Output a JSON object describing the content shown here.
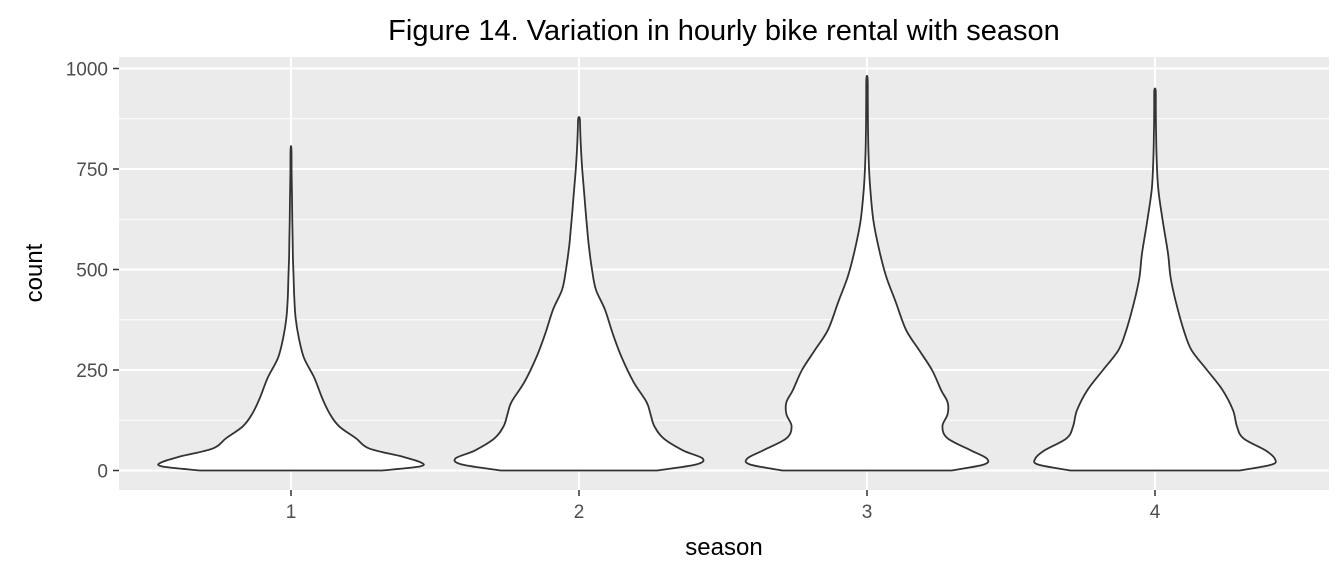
{
  "chart_data": {
    "type": "violin",
    "title": "Figure 14. Variation in hourly bike rental with season",
    "xlabel": "season",
    "ylabel": "count",
    "categories": [
      "1",
      "2",
      "3",
      "4"
    ],
    "yticks": [
      "0",
      "250",
      "500",
      "750",
      "1000"
    ],
    "ylim": [
      -50,
      1050
    ],
    "grid": true,
    "background": "#ebebeb",
    "gridcolor": "#ffffff",
    "outline": "#333333",
    "fill": "#ffffff",
    "violins": [
      {
        "category": "1",
        "profile": [
          [
            0,
            0.7
          ],
          [
            10,
            0.99
          ],
          [
            20,
            1.0
          ],
          [
            35,
            0.85
          ],
          [
            55,
            0.6
          ],
          [
            80,
            0.5
          ],
          [
            110,
            0.37
          ],
          [
            140,
            0.3
          ],
          [
            180,
            0.24
          ],
          [
            230,
            0.18
          ],
          [
            280,
            0.1
          ],
          [
            330,
            0.06
          ],
          [
            380,
            0.035
          ],
          [
            430,
            0.025
          ],
          [
            480,
            0.02
          ],
          [
            530,
            0.015
          ],
          [
            580,
            0.012
          ],
          [
            620,
            0.01
          ],
          [
            680,
            0.008
          ],
          [
            740,
            0.005
          ],
          [
            800,
            0.003
          ]
        ]
      },
      {
        "category": "2",
        "profile": [
          [
            0,
            0.6
          ],
          [
            15,
            0.9
          ],
          [
            30,
            0.95
          ],
          [
            50,
            0.8
          ],
          [
            80,
            0.65
          ],
          [
            110,
            0.58
          ],
          [
            140,
            0.55
          ],
          [
            170,
            0.52
          ],
          [
            220,
            0.42
          ],
          [
            280,
            0.33
          ],
          [
            340,
            0.26
          ],
          [
            400,
            0.2
          ],
          [
            450,
            0.13
          ],
          [
            500,
            0.1
          ],
          [
            560,
            0.075
          ],
          [
            620,
            0.058
          ],
          [
            680,
            0.042
          ],
          [
            740,
            0.027
          ],
          [
            800,
            0.015
          ],
          [
            840,
            0.01
          ],
          [
            875,
            0.006
          ]
        ]
      },
      {
        "category": "3",
        "profile": [
          [
            0,
            0.65
          ],
          [
            15,
            0.9
          ],
          [
            30,
            0.92
          ],
          [
            50,
            0.8
          ],
          [
            80,
            0.62
          ],
          [
            110,
            0.58
          ],
          [
            140,
            0.62
          ],
          [
            170,
            0.62
          ],
          [
            200,
            0.57
          ],
          [
            250,
            0.5
          ],
          [
            300,
            0.4
          ],
          [
            350,
            0.3
          ],
          [
            420,
            0.22
          ],
          [
            480,
            0.15
          ],
          [
            540,
            0.1
          ],
          [
            620,
            0.05
          ],
          [
            700,
            0.025
          ],
          [
            780,
            0.012
          ],
          [
            850,
            0.008
          ],
          [
            920,
            0.006
          ],
          [
            975,
            0.005
          ]
        ]
      },
      {
        "category": "4",
        "profile": [
          [
            0,
            0.65
          ],
          [
            15,
            0.9
          ],
          [
            30,
            0.92
          ],
          [
            50,
            0.85
          ],
          [
            80,
            0.68
          ],
          [
            110,
            0.63
          ],
          [
            150,
            0.6
          ],
          [
            200,
            0.52
          ],
          [
            250,
            0.4
          ],
          [
            300,
            0.28
          ],
          [
            350,
            0.22
          ],
          [
            420,
            0.16
          ],
          [
            480,
            0.12
          ],
          [
            540,
            0.1
          ],
          [
            620,
            0.06
          ],
          [
            700,
            0.025
          ],
          [
            780,
            0.012
          ],
          [
            850,
            0.008
          ],
          [
            900,
            0.006
          ],
          [
            945,
            0.005
          ]
        ]
      }
    ]
  }
}
